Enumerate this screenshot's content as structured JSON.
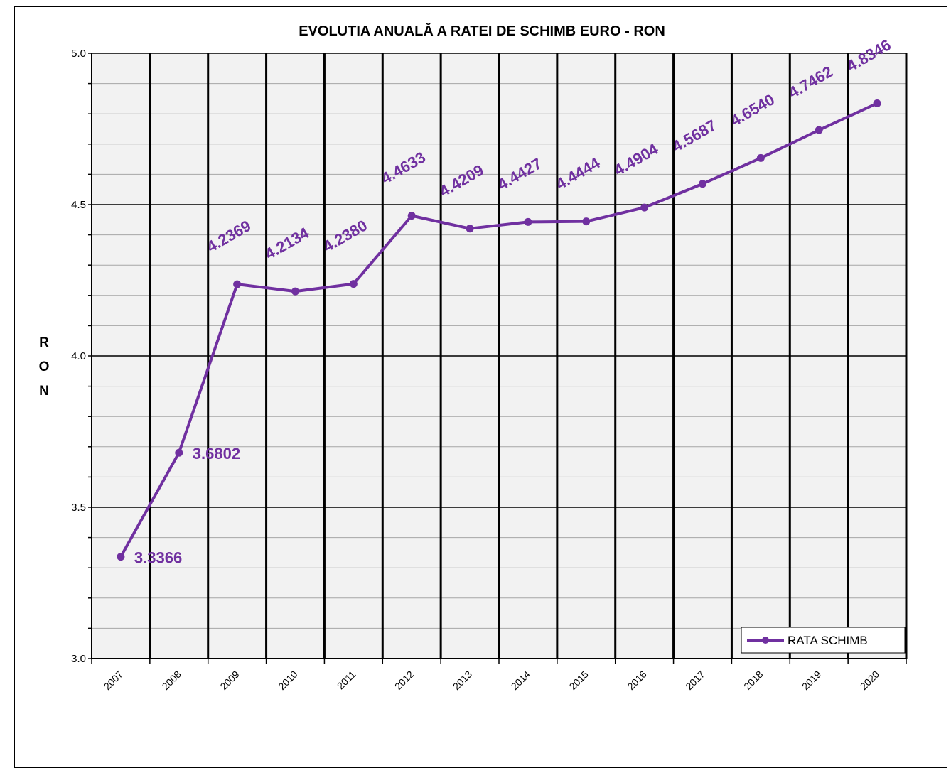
{
  "colors": {
    "series": "#7030A0",
    "plot_background": "#F2F2F2",
    "gridline": "#000000",
    "frame": "#000000"
  },
  "chart_data": {
    "type": "line",
    "title": "EVOLUTIA ANUALĂ  A  RATEI DE SCHIMB EURO - RON",
    "xlabel": "",
    "ylabel": "RON",
    "ylim": [
      3.0,
      5.0
    ],
    "y_major_ticks": [
      "3.0",
      "3.5",
      "4.0",
      "4.5",
      "5.0"
    ],
    "y_major_values": [
      3.0,
      3.5,
      4.0,
      4.5,
      5.0
    ],
    "y_minor_step": 0.1,
    "grid": true,
    "legend_position": "bottom-right",
    "categories": [
      "2007",
      "2008",
      "2009",
      "2010",
      "2011",
      "2012",
      "2013",
      "2014",
      "2015",
      "2016",
      "2017",
      "2018",
      "2019",
      "2020"
    ],
    "series": [
      {
        "name": "RATA SCHIMB",
        "values": [
          3.3366,
          3.6802,
          4.2369,
          4.2134,
          4.238,
          4.4633,
          4.4209,
          4.4427,
          4.4444,
          4.4904,
          4.5687,
          4.654,
          4.7462,
          4.8346
        ],
        "labels": [
          "3.3366",
          "3.6802",
          "4.2369",
          "4.2134",
          "4.2380",
          "4.4633",
          "4.4209",
          "4.4427",
          "4.4444",
          "4.4904",
          "4.5687",
          "4.6540",
          "4.7462",
          "4.8346"
        ]
      }
    ]
  }
}
